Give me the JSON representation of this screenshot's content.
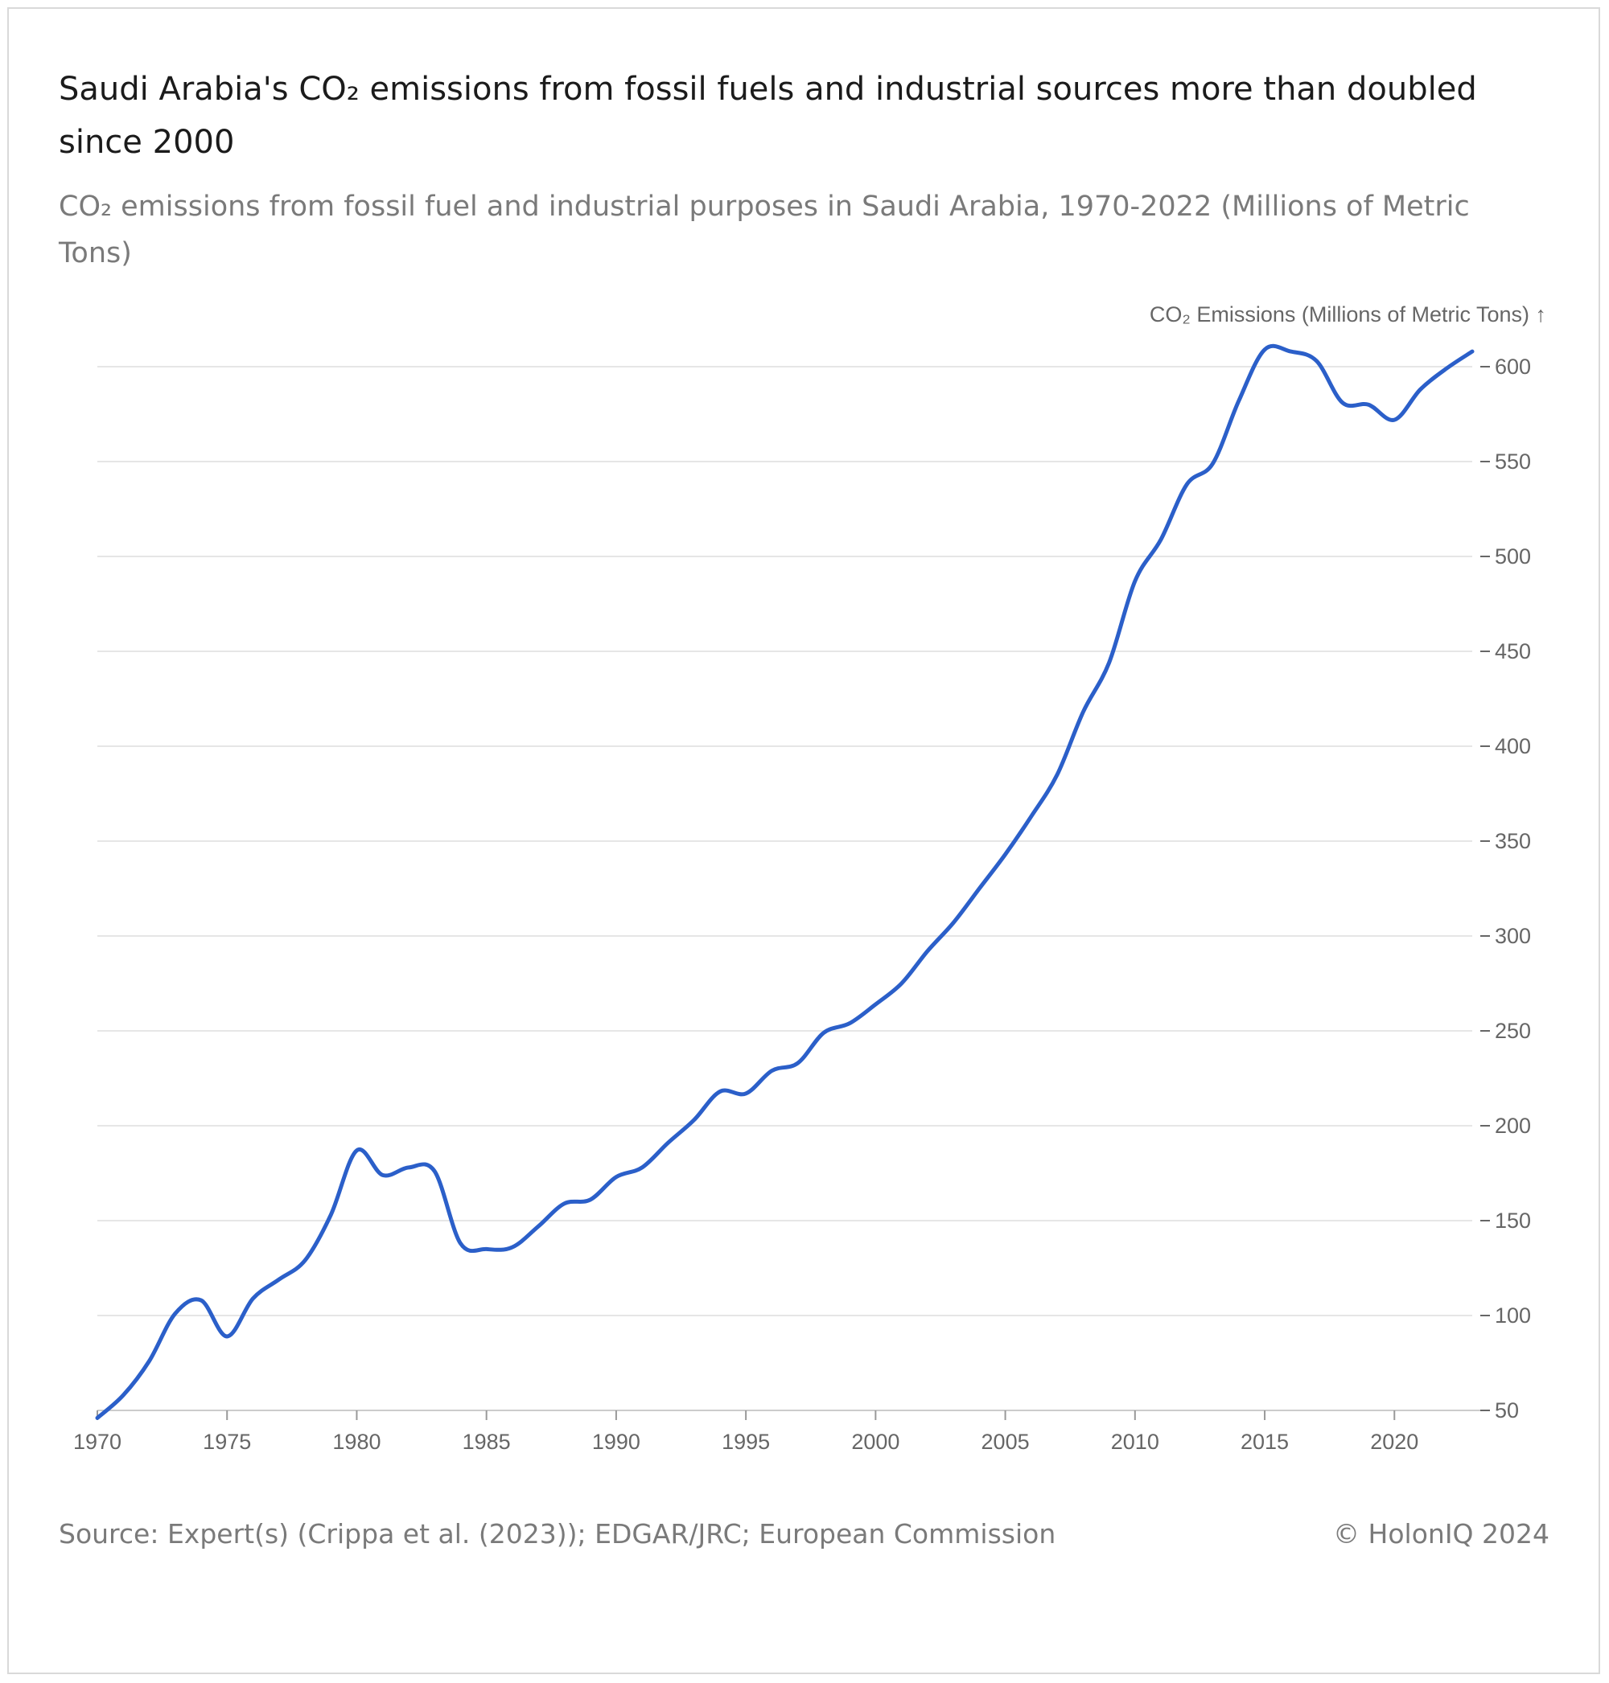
{
  "header": {
    "title": "Saudi Arabia's CO₂ emissions from fossil fuels and industrial sources more than doubled since 2000",
    "subtitle": "CO₂ emissions from fossil fuel and industrial purposes in Saudi Arabia, 1970-2022 (Millions of Metric Tons)"
  },
  "footer": {
    "source": "Source: Expert(s) (Crippa et al. (2023)); EDGAR/JRC; European Commission",
    "copyright": "© HolonIQ 2024"
  },
  "colors": {
    "line": "#2b5fc9",
    "grid": "#e6e6e6",
    "text": "#666666"
  },
  "chart_data": {
    "type": "line",
    "title": "Saudi Arabia's CO₂ emissions from fossil fuels and industrial sources more than doubled since 2000",
    "subtitle": "CO₂ emissions from fossil fuel and industrial purposes in Saudi Arabia, 1970-2022 (Millions of Metric Tons)",
    "xlabel": "",
    "ylabel": "CO₂ Emissions (Millions of Metric Tons) ↑",
    "xlim": [
      1970,
      2023
    ],
    "ylim": [
      50,
      600
    ],
    "x_ticks": [
      1970,
      1975,
      1980,
      1985,
      1990,
      1995,
      2000,
      2005,
      2010,
      2015,
      2020
    ],
    "y_ticks": [
      50,
      100,
      150,
      200,
      250,
      300,
      350,
      400,
      450,
      500,
      550,
      600
    ],
    "y_axis_position": "right",
    "grid": true,
    "legend": "none",
    "series": [
      {
        "x": [
          1970,
          1971,
          1972,
          1973,
          1974,
          1975,
          1976,
          1977,
          1978,
          1979,
          1980,
          1981,
          1982,
          1983,
          1984,
          1985,
          1986,
          1987,
          1988,
          1989,
          1990,
          1991,
          1992,
          1993,
          1994,
          1995,
          1996,
          1997,
          1998,
          1999,
          2000,
          2001,
          2002,
          2003,
          2004,
          2005,
          2006,
          2007,
          2008,
          2009,
          2010,
          2011,
          2012,
          2013,
          2014,
          2015,
          2016,
          2017,
          2018,
          2019,
          2020,
          2021,
          2022,
          2023
        ],
        "values": [
          46,
          58,
          76,
          101,
          108,
          89,
          109,
          119,
          129,
          153,
          187,
          174,
          178,
          176,
          138,
          135,
          136,
          147,
          159,
          161,
          173,
          178,
          191,
          203,
          218,
          217,
          229,
          233,
          249,
          254,
          264,
          275,
          292,
          307,
          325,
          343,
          363,
          385,
          418,
          444,
          487,
          509,
          538,
          549,
          582,
          609,
          608,
          603,
          581,
          580,
          572,
          588,
          599,
          608
        ]
      }
    ]
  }
}
